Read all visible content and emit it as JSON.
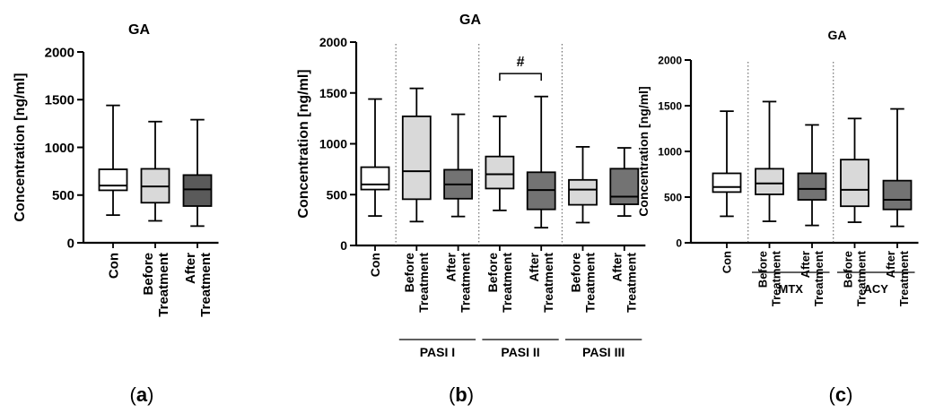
{
  "chart_data": [
    {
      "type": "box",
      "panel_label": "a",
      "title": "GA",
      "ylabel": "Concentration [ng/ml]",
      "ylim": [
        0,
        2000
      ],
      "yticks": [
        0,
        500,
        1000,
        1500,
        2000
      ],
      "categories": [
        {
          "lines": [
            "Con"
          ],
          "fill": "#ffffff"
        },
        {
          "lines": [
            "Before",
            "Treatment"
          ],
          "fill": "#d9d9d9"
        },
        {
          "lines": [
            "After",
            "Treatment"
          ],
          "fill": "#5a5a5a"
        }
      ],
      "boxes": [
        {
          "min": 290,
          "q1": 550,
          "median": 600,
          "q3": 770,
          "max": 1440
        },
        {
          "min": 230,
          "q1": 420,
          "median": 590,
          "q3": 775,
          "max": 1270
        },
        {
          "min": 175,
          "q1": 385,
          "median": 560,
          "q3": 710,
          "max": 1290
        }
      ],
      "groups": [],
      "annotations": []
    },
    {
      "type": "box",
      "panel_label": "b",
      "title": "GA",
      "ylabel": "Concentration [ng/ml]",
      "ylim": [
        0,
        2000
      ],
      "yticks": [
        0,
        500,
        1000,
        1500,
        2000
      ],
      "categories": [
        {
          "lines": [
            "Con"
          ],
          "fill": "#ffffff"
        },
        {
          "lines": [
            "Before",
            "Treatment"
          ],
          "fill": "#d9d9d9"
        },
        {
          "lines": [
            "After",
            "Treatment"
          ],
          "fill": "#737373"
        },
        {
          "lines": [
            "Before",
            "Treatment"
          ],
          "fill": "#d9d9d9"
        },
        {
          "lines": [
            "After",
            "Treatment"
          ],
          "fill": "#737373"
        },
        {
          "lines": [
            "Before",
            "Treatment"
          ],
          "fill": "#d9d9d9"
        },
        {
          "lines": [
            "After",
            "Treatment"
          ],
          "fill": "#737373"
        }
      ],
      "boxes": [
        {
          "min": 290,
          "q1": 550,
          "median": 600,
          "q3": 770,
          "max": 1440
        },
        {
          "min": 235,
          "q1": 455,
          "median": 730,
          "q3": 1270,
          "max": 1545
        },
        {
          "min": 285,
          "q1": 460,
          "median": 600,
          "q3": 745,
          "max": 1290
        },
        {
          "min": 345,
          "q1": 560,
          "median": 700,
          "q3": 875,
          "max": 1270
        },
        {
          "min": 175,
          "q1": 355,
          "median": 545,
          "q3": 720,
          "max": 1465
        },
        {
          "min": 225,
          "q1": 400,
          "median": 550,
          "q3": 645,
          "max": 970
        },
        {
          "min": 290,
          "q1": 405,
          "median": 480,
          "q3": 755,
          "max": 960
        }
      ],
      "groups": [
        {
          "label": "PASI I",
          "start": 1,
          "end": 2
        },
        {
          "label": "PASI II",
          "start": 3,
          "end": 4
        },
        {
          "label": "PASI III",
          "start": 5,
          "end": 6
        }
      ],
      "annotations": [
        {
          "text": "#",
          "from": 3,
          "to": 4,
          "y": 1690
        }
      ]
    },
    {
      "type": "box",
      "panel_label": "c",
      "title": "GA",
      "ylabel": "Concentration [ng/ml]",
      "ylim": [
        0,
        2000
      ],
      "yticks": [
        0,
        500,
        1000,
        1500,
        2000
      ],
      "categories": [
        {
          "lines": [
            "Con"
          ],
          "fill": "#ffffff"
        },
        {
          "lines": [
            "Before",
            "Treatment"
          ],
          "fill": "#d9d9d9"
        },
        {
          "lines": [
            "After",
            "Treatment"
          ],
          "fill": "#737373"
        },
        {
          "lines": [
            "Before",
            "Treatment"
          ],
          "fill": "#d9d9d9"
        },
        {
          "lines": [
            "After",
            "Treatment"
          ],
          "fill": "#737373"
        }
      ],
      "boxes": [
        {
          "min": 290,
          "q1": 555,
          "median": 610,
          "q3": 760,
          "max": 1440
        },
        {
          "min": 235,
          "q1": 530,
          "median": 650,
          "q3": 810,
          "max": 1545
        },
        {
          "min": 190,
          "q1": 470,
          "median": 590,
          "q3": 760,
          "max": 1290
        },
        {
          "min": 225,
          "q1": 400,
          "median": 580,
          "q3": 910,
          "max": 1360
        },
        {
          "min": 180,
          "q1": 365,
          "median": 470,
          "q3": 680,
          "max": 1465
        }
      ],
      "groups": [
        {
          "label": "MTX",
          "start": 1,
          "end": 2
        },
        {
          "label": "ACY",
          "start": 3,
          "end": 4
        }
      ],
      "annotations": []
    }
  ]
}
